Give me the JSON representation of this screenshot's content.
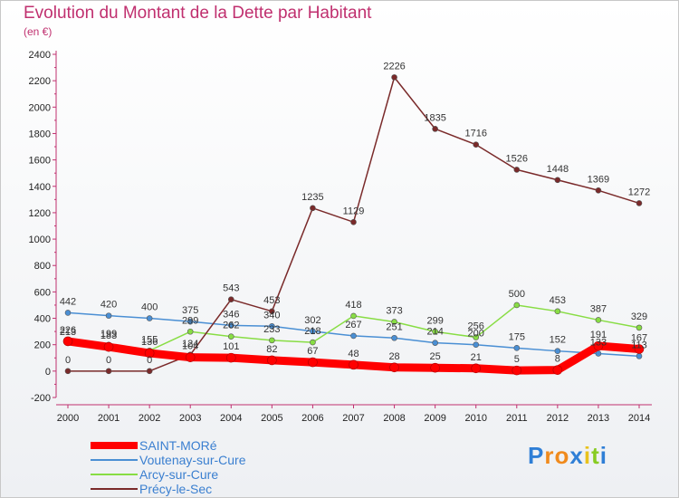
{
  "chart_data": {
    "type": "line",
    "title": "Evolution du Montant de la Dette par Habitant",
    "subtitle": "(en €)",
    "x": [
      "2000",
      "2001",
      "2002",
      "2003",
      "2004",
      "2005",
      "2006",
      "2007",
      "2008",
      "2009",
      "2010",
      "2011",
      "2012",
      "2013",
      "2014"
    ],
    "yticks": [
      -200,
      0,
      200,
      400,
      600,
      800,
      1000,
      1200,
      1400,
      1600,
      1800,
      2000,
      2200,
      2400
    ],
    "ylim": [
      -200,
      2400
    ],
    "grid": false,
    "legend_placement": "bottom-left",
    "series": [
      {
        "name": "SAINT-MORé",
        "color": "#ff0000",
        "values": [
          226,
          183,
          136,
          104,
          101,
          82,
          67,
          48,
          28,
          25,
          21,
          5,
          8,
          191,
          167
        ]
      },
      {
        "name": "Voutenay-sur-Cure",
        "color": "#4a8fd4",
        "values": [
          442,
          420,
          400,
          375,
          346,
          340,
          302,
          267,
          251,
          214,
          200,
          175,
          152,
          133,
          113
        ]
      },
      {
        "name": "Arcy-sur-Cure",
        "color": "#88dd44",
        "values": [
          213,
          199,
          155,
          299,
          262,
          233,
          218,
          418,
          373,
          299,
          256,
          500,
          453,
          387,
          329
        ]
      },
      {
        "name": "Précy-le-Sec",
        "color": "#7a2a2a",
        "values": [
          0,
          0,
          0,
          124,
          543,
          453,
          1235,
          1129,
          2226,
          1835,
          1716,
          1526,
          1448,
          1369,
          1272
        ]
      }
    ]
  },
  "logo": {
    "text": "Proxiti",
    "letters": [
      "P",
      "r",
      "o",
      "x",
      "i",
      "t",
      "i"
    ],
    "colors": [
      "#2f7fd6",
      "#f08a1c",
      "#f08a1c",
      "#2f7fd6",
      "#e8c21c",
      "#88cc22",
      "#2f7fd6"
    ]
  }
}
